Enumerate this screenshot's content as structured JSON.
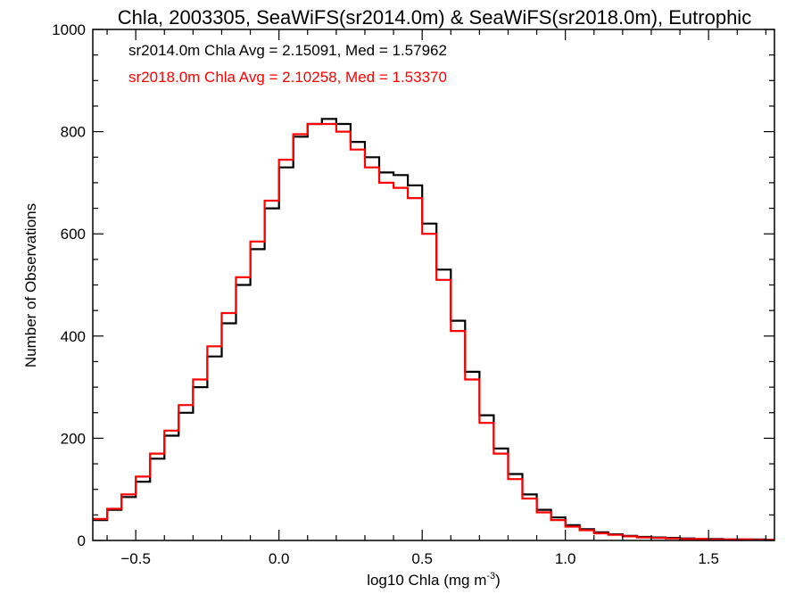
{
  "chart_data": {
    "type": "line",
    "style": "step-histogram",
    "title": "Chla, 2003305, SeaWiFS(sr2014.0m) & SeaWiFS(sr2018.0m), Eutrophic",
    "xlabel_main": "log10 Chla (mg m",
    "xlabel_exp": "-3",
    "xlabel_close": ")",
    "ylabel": "Number of Observations",
    "xlim": [
      -0.65,
      1.73
    ],
    "ylim": [
      0,
      1000
    ],
    "xticks": [
      -0.5,
      0.0,
      0.5,
      1.0,
      1.5
    ],
    "xtick_labels": [
      "−0.5",
      "0.0",
      "0.5",
      "1.0",
      "1.5"
    ],
    "yticks": [
      0,
      200,
      400,
      600,
      800,
      1000
    ],
    "ytick_labels": [
      "0",
      "200",
      "400",
      "600",
      "800",
      "1000"
    ],
    "legend": {
      "placement": "top-left",
      "entries": [
        "sr2014.0m Chla Avg = 2.15091, Med = 1.57962",
        "sr2018.0m Chla Avg = 2.10258, Med = 1.53370"
      ]
    },
    "series": [
      {
        "color": "#000000",
        "x": [
          -0.65,
          -0.6,
          -0.55,
          -0.5,
          -0.45,
          -0.4,
          -0.35,
          -0.3,
          -0.25,
          -0.2,
          -0.15,
          -0.1,
          -0.05,
          0.0,
          0.05,
          0.1,
          0.15,
          0.2,
          0.25,
          0.3,
          0.35,
          0.4,
          0.45,
          0.5,
          0.55,
          0.6,
          0.65,
          0.7,
          0.75,
          0.8,
          0.85,
          0.9,
          0.95,
          1.0,
          1.05,
          1.1,
          1.15,
          1.2,
          1.25,
          1.3,
          1.35,
          1.4,
          1.45,
          1.5,
          1.55,
          1.6,
          1.65,
          1.7
        ],
        "y": [
          40,
          60,
          85,
          115,
          160,
          205,
          250,
          300,
          360,
          425,
          500,
          570,
          650,
          730,
          790,
          815,
          825,
          815,
          780,
          750,
          720,
          715,
          695,
          620,
          530,
          430,
          330,
          245,
          180,
          130,
          90,
          60,
          45,
          30,
          22,
          16,
          12,
          9,
          7,
          6,
          5,
          4,
          3,
          3,
          2,
          2,
          2,
          1
        ]
      },
      {
        "color": "#ff0000",
        "x": [
          -0.65,
          -0.6,
          -0.55,
          -0.5,
          -0.45,
          -0.4,
          -0.35,
          -0.3,
          -0.25,
          -0.2,
          -0.15,
          -0.1,
          -0.05,
          0.0,
          0.05,
          0.1,
          0.15,
          0.2,
          0.25,
          0.3,
          0.35,
          0.4,
          0.45,
          0.5,
          0.55,
          0.6,
          0.65,
          0.7,
          0.75,
          0.8,
          0.85,
          0.9,
          0.95,
          1.0,
          1.05,
          1.1,
          1.15,
          1.2,
          1.25,
          1.3,
          1.35,
          1.4,
          1.45,
          1.5,
          1.55,
          1.6,
          1.65,
          1.7
        ],
        "y": [
          42,
          62,
          90,
          125,
          170,
          215,
          265,
          315,
          380,
          445,
          515,
          585,
          665,
          745,
          795,
          815,
          815,
          800,
          765,
          730,
          700,
          690,
          670,
          600,
          510,
          410,
          315,
          230,
          170,
          120,
          82,
          55,
          40,
          27,
          20,
          14,
          11,
          8,
          6,
          5,
          4,
          3,
          3,
          2,
          2,
          2,
          1,
          1
        ]
      }
    ]
  }
}
